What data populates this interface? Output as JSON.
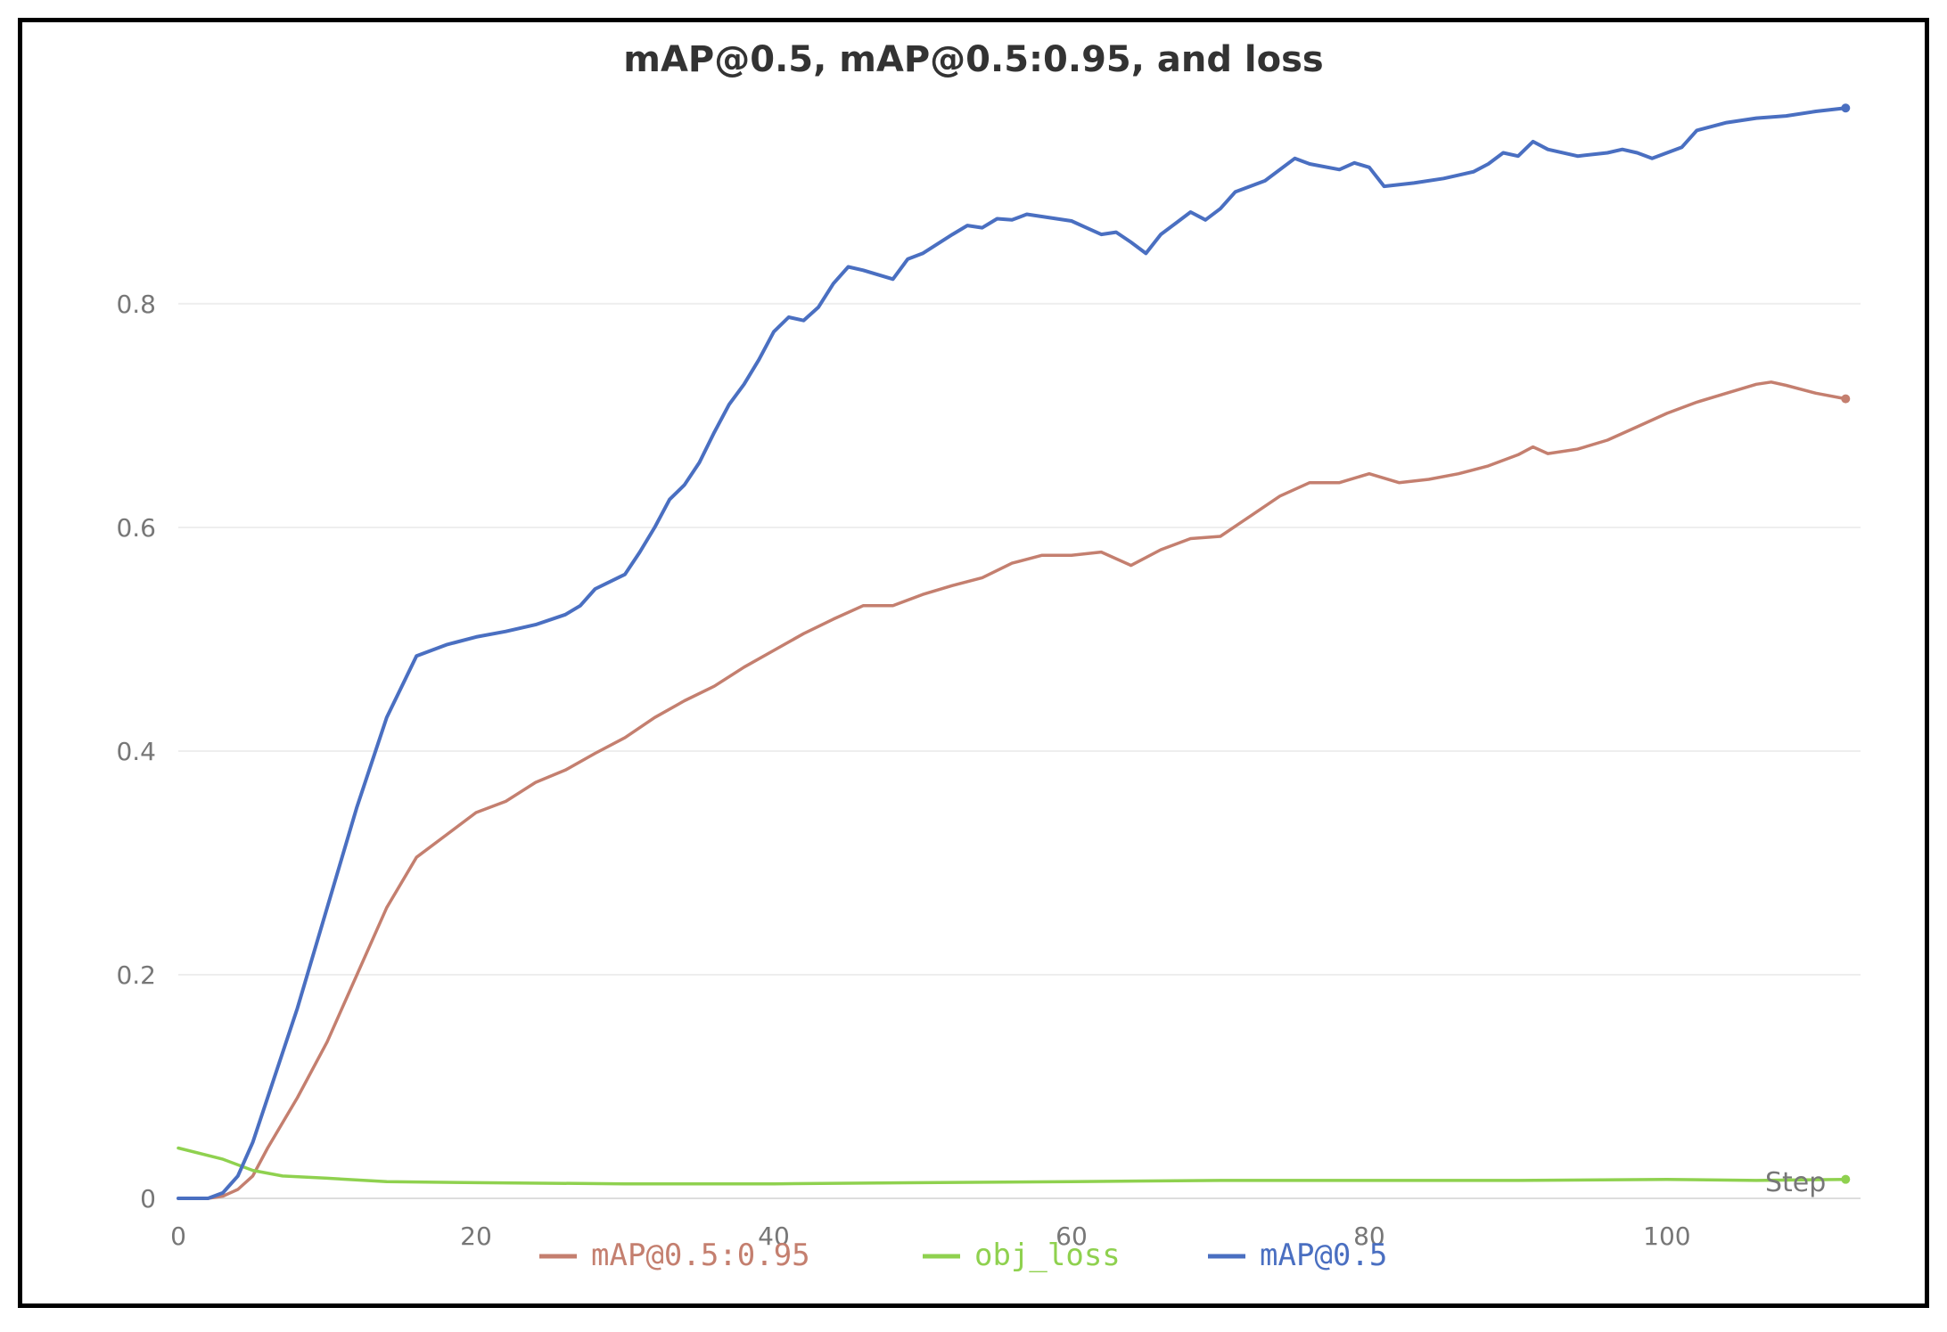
{
  "chart_data": {
    "type": "line",
    "title": "mAP@0.5, mAP@0.5:0.95, and loss",
    "xlabel": "Step",
    "ylabel": "",
    "xlim": [
      0,
      113
    ],
    "ylim": [
      0,
      0.98
    ],
    "x_ticks": [
      0,
      20,
      40,
      60,
      80,
      100
    ],
    "y_ticks": [
      0,
      0.2,
      0.4,
      0.6,
      0.8
    ],
    "x_tick_labels": [
      "0",
      "20",
      "40",
      "60",
      "80",
      "100"
    ],
    "y_tick_labels": [
      "0",
      "0.2",
      "0.4",
      "0.6",
      "0.8"
    ],
    "grid": true,
    "legend": "bottom",
    "series": [
      {
        "name": "mAP@0.5:0.95",
        "color": "#c47f6f",
        "points": [
          [
            0,
            0
          ],
          [
            2,
            0
          ],
          [
            3,
            0.002
          ],
          [
            4,
            0.008
          ],
          [
            5,
            0.02
          ],
          [
            6,
            0.045
          ],
          [
            8,
            0.09
          ],
          [
            10,
            0.14
          ],
          [
            12,
            0.2
          ],
          [
            14,
            0.26
          ],
          [
            16,
            0.305
          ],
          [
            18,
            0.325
          ],
          [
            20,
            0.345
          ],
          [
            22,
            0.355
          ],
          [
            24,
            0.372
          ],
          [
            26,
            0.383
          ],
          [
            28,
            0.398
          ],
          [
            30,
            0.412
          ],
          [
            32,
            0.43
          ],
          [
            34,
            0.445
          ],
          [
            36,
            0.458
          ],
          [
            38,
            0.475
          ],
          [
            40,
            0.49
          ],
          [
            42,
            0.505
          ],
          [
            44,
            0.518
          ],
          [
            46,
            0.53
          ],
          [
            48,
            0.53
          ],
          [
            50,
            0.54
          ],
          [
            52,
            0.548
          ],
          [
            54,
            0.555
          ],
          [
            56,
            0.568
          ],
          [
            58,
            0.575
          ],
          [
            60,
            0.575
          ],
          [
            62,
            0.578
          ],
          [
            64,
            0.566
          ],
          [
            66,
            0.58
          ],
          [
            68,
            0.59
          ],
          [
            70,
            0.592
          ],
          [
            72,
            0.61
          ],
          [
            74,
            0.628
          ],
          [
            76,
            0.64
          ],
          [
            78,
            0.64
          ],
          [
            80,
            0.648
          ],
          [
            82,
            0.64
          ],
          [
            84,
            0.643
          ],
          [
            86,
            0.648
          ],
          [
            88,
            0.655
          ],
          [
            90,
            0.665
          ],
          [
            91,
            0.672
          ],
          [
            92,
            0.666
          ],
          [
            94,
            0.67
          ],
          [
            96,
            0.678
          ],
          [
            98,
            0.69
          ],
          [
            100,
            0.702
          ],
          [
            102,
            0.712
          ],
          [
            104,
            0.72
          ],
          [
            106,
            0.728
          ],
          [
            107,
            0.73
          ],
          [
            108,
            0.727
          ],
          [
            110,
            0.72
          ],
          [
            112,
            0.715
          ]
        ]
      },
      {
        "name": "obj_loss",
        "color": "#8fd14f",
        "points": [
          [
            0,
            0.045
          ],
          [
            3,
            0.035
          ],
          [
            5,
            0.025
          ],
          [
            7,
            0.02
          ],
          [
            10,
            0.018
          ],
          [
            14,
            0.015
          ],
          [
            20,
            0.014
          ],
          [
            30,
            0.013
          ],
          [
            40,
            0.013
          ],
          [
            50,
            0.014
          ],
          [
            60,
            0.015
          ],
          [
            70,
            0.016
          ],
          [
            80,
            0.016
          ],
          [
            90,
            0.016
          ],
          [
            100,
            0.017
          ],
          [
            106,
            0.016
          ],
          [
            112,
            0.017
          ]
        ]
      },
      {
        "name": "mAP@0.5",
        "color": "#4a6fc1",
        "points": [
          [
            0,
            0
          ],
          [
            2,
            0
          ],
          [
            3,
            0.005
          ],
          [
            4,
            0.02
          ],
          [
            5,
            0.05
          ],
          [
            6,
            0.09
          ],
          [
            8,
            0.17
          ],
          [
            10,
            0.26
          ],
          [
            12,
            0.35
          ],
          [
            14,
            0.43
          ],
          [
            16,
            0.485
          ],
          [
            18,
            0.495
          ],
          [
            20,
            0.502
          ],
          [
            22,
            0.507
          ],
          [
            24,
            0.513
          ],
          [
            26,
            0.522
          ],
          [
            27,
            0.53
          ],
          [
            28,
            0.545
          ],
          [
            30,
            0.558
          ],
          [
            31,
            0.578
          ],
          [
            32,
            0.6
          ],
          [
            33,
            0.625
          ],
          [
            34,
            0.638
          ],
          [
            35,
            0.658
          ],
          [
            36,
            0.685
          ],
          [
            37,
            0.71
          ],
          [
            38,
            0.728
          ],
          [
            39,
            0.75
          ],
          [
            40,
            0.775
          ],
          [
            41,
            0.788
          ],
          [
            42,
            0.785
          ],
          [
            43,
            0.797
          ],
          [
            44,
            0.818
          ],
          [
            45,
            0.833
          ],
          [
            46,
            0.83
          ],
          [
            48,
            0.822
          ],
          [
            49,
            0.84
          ],
          [
            50,
            0.845
          ],
          [
            52,
            0.862
          ],
          [
            53,
            0.87
          ],
          [
            54,
            0.868
          ],
          [
            55,
            0.876
          ],
          [
            56,
            0.875
          ],
          [
            57,
            0.88
          ],
          [
            58,
            0.878
          ],
          [
            60,
            0.874
          ],
          [
            61,
            0.868
          ],
          [
            62,
            0.862
          ],
          [
            63,
            0.864
          ],
          [
            64,
            0.855
          ],
          [
            65,
            0.845
          ],
          [
            66,
            0.862
          ],
          [
            67,
            0.872
          ],
          [
            68,
            0.882
          ],
          [
            69,
            0.875
          ],
          [
            70,
            0.885
          ],
          [
            71,
            0.9
          ],
          [
            73,
            0.91
          ],
          [
            75,
            0.93
          ],
          [
            76,
            0.925
          ],
          [
            78,
            0.92
          ],
          [
            79,
            0.926
          ],
          [
            80,
            0.922
          ],
          [
            81,
            0.905
          ],
          [
            83,
            0.908
          ],
          [
            85,
            0.912
          ],
          [
            86,
            0.915
          ],
          [
            87,
            0.918
          ],
          [
            88,
            0.925
          ],
          [
            89,
            0.935
          ],
          [
            90,
            0.932
          ],
          [
            91,
            0.945
          ],
          [
            92,
            0.938
          ],
          [
            94,
            0.932
          ],
          [
            96,
            0.935
          ],
          [
            97,
            0.938
          ],
          [
            98,
            0.935
          ],
          [
            99,
            0.93
          ],
          [
            100,
            0.935
          ],
          [
            101,
            0.94
          ],
          [
            102,
            0.955
          ],
          [
            104,
            0.962
          ],
          [
            106,
            0.966
          ],
          [
            108,
            0.968
          ],
          [
            110,
            0.972
          ],
          [
            112,
            0.975
          ]
        ]
      }
    ]
  }
}
